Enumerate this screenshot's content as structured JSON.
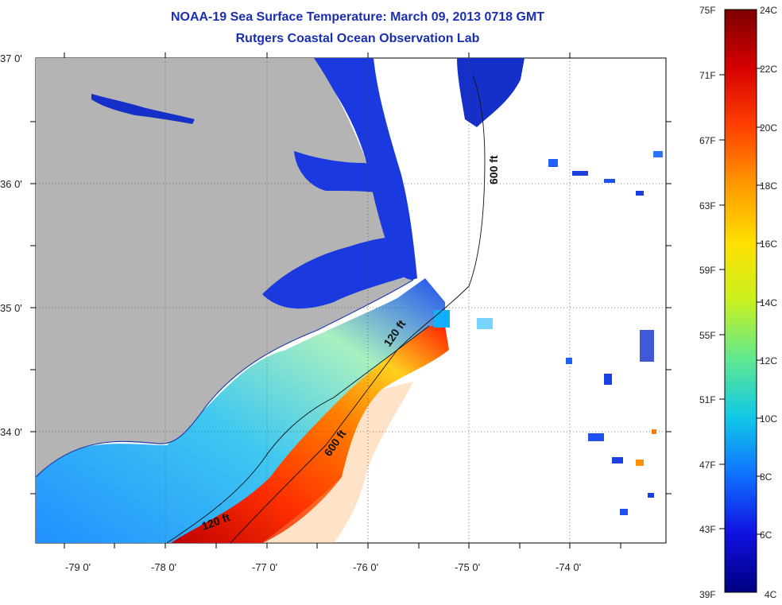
{
  "title": "NOAA-19 Sea Surface Temperature:  March 09, 2013 0718 GMT",
  "subtitle": "Rutgers Coastal Ocean Observation Lab",
  "lat_ticks": [
    "37 0'",
    "36 0'",
    "35 0'",
    "34 0'"
  ],
  "lon_ticks": [
    "-79 0'",
    "-78 0'",
    "-77 0'",
    "-76 0'",
    "-75 0'",
    "-74 0'"
  ],
  "depth_labels": [
    "600 ft",
    "120 ft",
    "600 ft",
    "120 ft"
  ],
  "colorbar": {
    "fahrenheit": [
      "75F",
      "71F",
      "67F",
      "63F",
      "59F",
      "55F",
      "51F",
      "47F",
      "43F",
      "39F"
    ],
    "celsius": [
      "24C",
      "22C",
      "20C",
      "18C",
      "16C",
      "14C",
      "12C",
      "10C",
      "8C",
      "6C",
      "4C"
    ],
    "colors": [
      "#7a0000",
      "#d60000",
      "#ff4000",
      "#ff9900",
      "#ffe000",
      "#c8f020",
      "#60e890",
      "#10c8e8",
      "#1070ff",
      "#1010e0",
      "#000080"
    ]
  },
  "colors": {
    "land": "#b4b4b4",
    "title": "#1a2fb0",
    "cold_water": "#1a3ae0"
  }
}
